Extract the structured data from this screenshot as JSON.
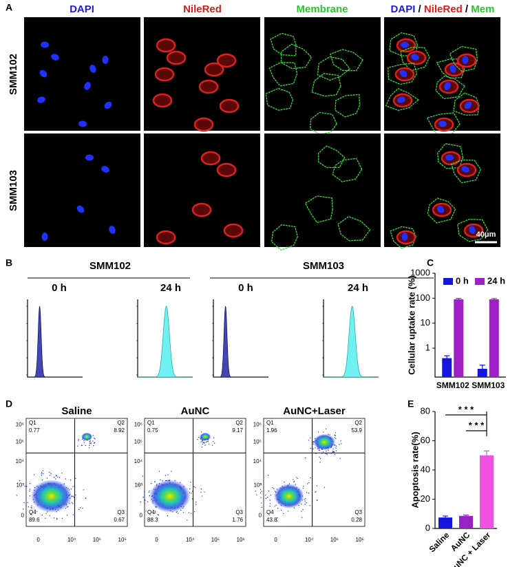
{
  "panel_labels": [
    "A",
    "B",
    "C",
    "D",
    "E"
  ],
  "panel_a": {
    "columns": [
      "DAPI",
      "NileRed",
      "Membrane"
    ],
    "merged_header": [
      "DAPI",
      "/",
      "NileRed",
      "/",
      "Mem"
    ],
    "rows": [
      "SMM102",
      "SMM103"
    ],
    "scale_bar": "40μm"
  },
  "panel_b": {
    "groups": [
      {
        "name": "SMM102",
        "times": [
          "0 h",
          "24 h"
        ]
      },
      {
        "name": "SMM103",
        "times": [
          "0 h",
          "24 h"
        ]
      }
    ]
  },
  "panel_d": {
    "plots": [
      {
        "title": "Saline",
        "quadrants": [
          {
            "name": "Q1",
            "value": 0.77
          },
          {
            "name": "Q2",
            "value": 8.92
          },
          {
            "name": "Q3",
            "value": 0.67
          },
          {
            "name": "Q4",
            "value": 89.6
          }
        ]
      },
      {
        "title": "AuNC",
        "quadrants": [
          {
            "name": "Q1",
            "value": 0.75
          },
          {
            "name": "Q2",
            "value": 9.17
          },
          {
            "name": "Q3",
            "value": 1.76
          },
          {
            "name": "Q4",
            "value": 88.3
          }
        ]
      },
      {
        "title": "AuNC+Laser",
        "quadrants": [
          {
            "name": "Q1",
            "value": 1.96
          },
          {
            "name": "Q2",
            "value": 53.9
          },
          {
            "name": "Q3",
            "value": 0.28
          },
          {
            "name": "Q4",
            "value": 43.8
          }
        ]
      }
    ],
    "x_ticks": [
      "0",
      "10⁴",
      "10⁵",
      "10⁶"
    ],
    "y_ticks": [
      "10⁶",
      "10⁵",
      "10⁴",
      "10³",
      "0"
    ]
  },
  "chart_data": [
    {
      "type": "bar",
      "ylabel": "Cellular uptake rate (%)",
      "categories": [
        "SMM102",
        "SMM103"
      ],
      "series": [
        {
          "name": "0 h",
          "color": "#1515e0",
          "values": [
            0.4,
            0.15
          ],
          "errors": [
            0.1,
            0.06
          ]
        },
        {
          "name": "24 h",
          "color": "#a020c8",
          "values": [
            90,
            90
          ],
          "errors": [
            8,
            7
          ]
        }
      ],
      "log_scale": true,
      "ylim": [
        0.07,
        1000
      ],
      "yticks": [
        1,
        10,
        100,
        1000
      ],
      "legend": "top"
    },
    {
      "type": "bar",
      "ylabel": "Apoptosis rate(%)",
      "categories": [
        "Saline",
        "AuNC",
        "AuNC + Laser"
      ],
      "values": [
        7.5,
        8.6,
        50
      ],
      "errors": [
        1,
        0.6,
        3
      ],
      "colors": [
        "#1515e0",
        "#9a20c8",
        "#f050e0"
      ],
      "ylim": [
        0,
        80
      ],
      "yticks": [
        0,
        20,
        40,
        60,
        80
      ],
      "annotations": [
        "* * *",
        "* * *"
      ]
    }
  ]
}
